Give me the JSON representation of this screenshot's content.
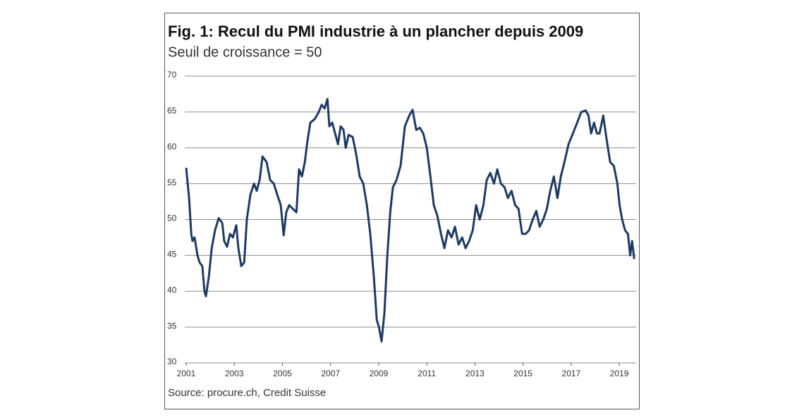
{
  "chart_data": {
    "type": "line",
    "title": "Fig. 1: Recul du PMI industrie à un plancher depuis 2009",
    "subtitle": "Seuil de croissance = 50",
    "source": "Source: procure.ch, Credit Suisse",
    "xlim": [
      2001,
      2019.7
    ],
    "xticks": [
      2001,
      2003,
      2005,
      2007,
      2009,
      2011,
      2013,
      2015,
      2017,
      2019
    ],
    "ylim": [
      30,
      70
    ],
    "yticks": [
      30,
      35,
      40,
      45,
      50,
      55,
      60,
      65,
      70
    ],
    "grid": true,
    "series": [
      {
        "name": "PMI industrie",
        "color": "#1c3a66",
        "x": [
          2001.0,
          2001.12,
          2001.21,
          2001.26,
          2001.35,
          2001.47,
          2001.56,
          2001.67,
          2001.76,
          2001.82,
          2001.94,
          2002.06,
          2002.2,
          2002.35,
          2002.5,
          2002.58,
          2002.7,
          2002.82,
          2002.94,
          2003.08,
          2003.17,
          2003.29,
          2003.41,
          2003.52,
          2003.67,
          2003.82,
          2003.93,
          2004.05,
          2004.17,
          2004.34,
          2004.49,
          2004.64,
          2004.78,
          2004.93,
          2005.05,
          2005.16,
          2005.28,
          2005.43,
          2005.58,
          2005.69,
          2005.81,
          2005.93,
          2006.04,
          2006.16,
          2006.34,
          2006.51,
          2006.63,
          2006.75,
          2006.87,
          2006.95,
          2007.07,
          2007.19,
          2007.31,
          2007.42,
          2007.54,
          2007.63,
          2007.75,
          2007.92,
          2008.07,
          2008.21,
          2008.36,
          2008.51,
          2008.65,
          2008.8,
          2008.92,
          2009.01,
          2009.12,
          2009.24,
          2009.36,
          2009.48,
          2009.59,
          2009.74,
          2009.91,
          2010.09,
          2010.27,
          2010.41,
          2010.56,
          2010.71,
          2010.85,
          2011.0,
          2011.15,
          2011.29,
          2011.44,
          2011.59,
          2011.73,
          2011.88,
          2012.03,
          2012.17,
          2012.32,
          2012.47,
          2012.61,
          2012.76,
          2012.91,
          2013.05,
          2013.2,
          2013.35,
          2013.49,
          2013.64,
          2013.79,
          2013.93,
          2014.08,
          2014.23,
          2014.37,
          2014.52,
          2014.67,
          2014.81,
          2014.96,
          2015.11,
          2015.25,
          2015.4,
          2015.55,
          2015.69,
          2015.84,
          2015.99,
          2016.13,
          2016.28,
          2016.43,
          2016.57,
          2016.72,
          2016.89,
          2017.07,
          2017.25,
          2017.42,
          2017.6,
          2017.72,
          2017.83,
          2017.95,
          2018.07,
          2018.18,
          2018.33,
          2018.48,
          2018.62,
          2018.77,
          2018.92,
          2019.01,
          2019.12,
          2019.24,
          2019.36,
          2019.45,
          2019.53,
          2019.62
        ],
        "values": [
          57.2,
          53,
          48,
          47,
          47.5,
          45,
          44,
          43.5,
          40,
          39.3,
          42,
          46,
          48.5,
          50.2,
          49.5,
          47,
          46.2,
          48,
          47.5,
          49.2,
          46,
          43.5,
          44,
          50,
          53.5,
          55,
          54,
          55.5,
          58.8,
          58,
          55.5,
          55,
          53.5,
          52,
          47.8,
          51,
          52,
          51.5,
          51,
          57,
          56,
          58,
          61,
          63.5,
          64,
          65,
          66,
          65.5,
          66.8,
          63,
          63.5,
          62,
          60.5,
          63,
          62.5,
          60,
          61.8,
          61.5,
          59,
          56,
          55,
          52,
          48,
          42,
          36,
          35,
          33,
          37,
          45,
          51,
          54.5,
          55.5,
          57.5,
          63,
          64.5,
          65.3,
          62.5,
          62.8,
          62,
          60,
          56,
          52,
          50.5,
          48,
          46,
          48.5,
          47.5,
          49,
          46.5,
          47.5,
          46,
          47,
          48.5,
          52,
          50,
          52,
          55.5,
          56.5,
          55,
          57,
          55,
          54.5,
          53,
          54,
          52,
          51.5,
          48,
          48,
          48.5,
          50,
          51.2,
          49,
          50,
          51.5,
          54,
          56,
          53,
          56,
          58,
          60.5,
          62,
          63.5,
          65,
          65.2,
          64.5,
          62,
          63.5,
          62,
          62,
          64.5,
          61,
          58,
          57.5,
          55,
          52,
          50,
          48.5,
          48,
          45,
          47,
          44.5
        ]
      }
    ]
  }
}
